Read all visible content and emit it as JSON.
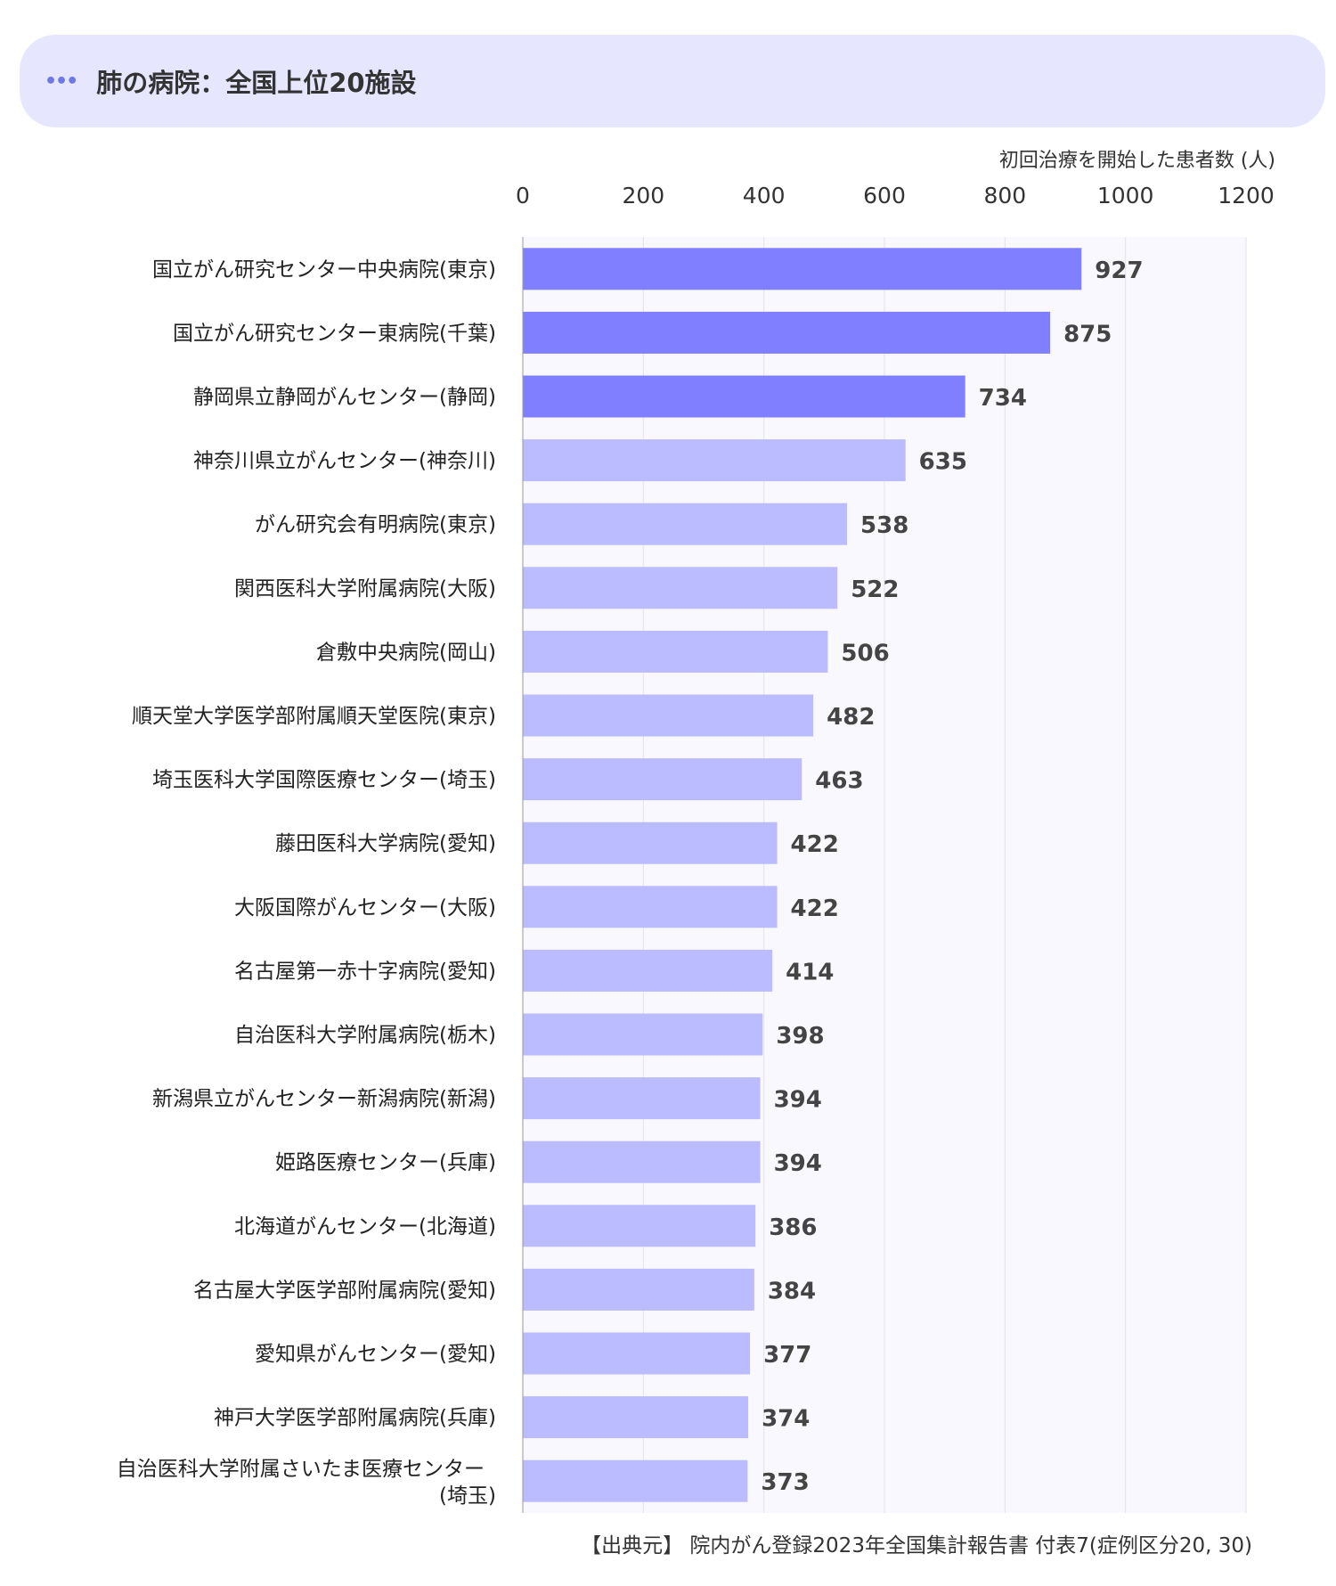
{
  "header": {
    "icon": "more-dots-icon",
    "title": "肺の病院：全国上位20施設"
  },
  "chart_data": {
    "type": "bar",
    "orientation": "horizontal",
    "xlabel": "初回治療を開始した患者数 (人)",
    "xlim": [
      0,
      1200
    ],
    "xticks": [
      0,
      200,
      400,
      600,
      800,
      1000,
      1200
    ],
    "grid": true,
    "colors": {
      "top3": "#7f7fff",
      "rest": "#bbbbff",
      "plot_bg": "#f8f8fe"
    },
    "categories": [
      "国立がん研究センター中央病院(東京)",
      "国立がん研究センター東病院(千葉)",
      "静岡県立静岡がんセンター(静岡)",
      "神奈川県立がんセンター(神奈川)",
      "がん研究会有明病院(東京)",
      "関西医科大学附属病院(大阪)",
      "倉敷中央病院(岡山)",
      "順天堂大学医学部附属順天堂医院(東京)",
      "埼玉医科大学国際医療センター(埼玉)",
      "藤田医科大学病院(愛知)",
      "大阪国際がんセンター(大阪)",
      "名古屋第一赤十字病院(愛知)",
      "自治医科大学附属病院(栃木)",
      "新潟県立がんセンター新潟病院(新潟)",
      "姫路医療センター(兵庫)",
      "北海道がんセンター(北海道)",
      "名古屋大学医学部附属病院(愛知)",
      "愛知県がんセンター(愛知)",
      "神戸大学医学部附属病院(兵庫)",
      "自治医科大学附属さいたま医療センター(埼玉)"
    ],
    "values": [
      927,
      875,
      734,
      635,
      538,
      522,
      506,
      482,
      463,
      422,
      422,
      414,
      398,
      394,
      394,
      386,
      384,
      377,
      374,
      373
    ]
  },
  "source": "【出典元】 院内がん登録2023年全国集計報告書 付表7(症例区分20, 30)"
}
